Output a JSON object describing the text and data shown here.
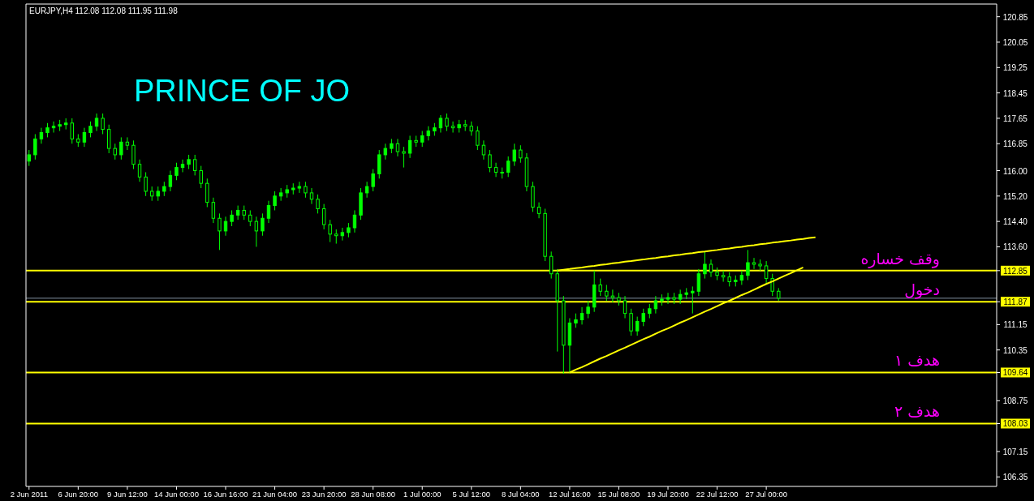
{
  "chart_data": {
    "type": "candlestick",
    "title": "EURJPY,H4  112.08 112.08 111.95 111.98",
    "color": "#00ff00",
    "annotations": [
      "PRINCE OF JO"
    ],
    "categories": [
      "2 Jun 2011",
      null,
      null,
      null,
      null,
      null,
      null,
      null,
      "6 Jun 20:00",
      null,
      null,
      null,
      null,
      null,
      null,
      null,
      "9 Jun 12:00",
      null,
      null,
      null,
      null,
      null,
      null,
      null,
      "14 Jun 00:00",
      null,
      null,
      null,
      null,
      null,
      null,
      null,
      "16 Jun 16:00",
      null,
      null,
      null,
      null,
      null,
      null,
      null,
      "21 Jun 04:00",
      null,
      null,
      null,
      null,
      null,
      null,
      null,
      "23 Jun 20:00",
      null,
      null,
      null,
      null,
      null,
      null,
      null,
      "28 Jun 08:00",
      null,
      null,
      null,
      null,
      null,
      null,
      null,
      "1 Jul 00:00",
      null,
      null,
      null,
      null,
      null,
      null,
      null,
      "5 Jul 12:00",
      null,
      null,
      null,
      null,
      null,
      null,
      null,
      "8 Jul 04:00",
      null,
      null,
      null,
      null,
      null,
      null,
      null,
      "12 Jul 16:00",
      null,
      null,
      null,
      null,
      null,
      null,
      null,
      "15 Jul 08:00",
      null,
      null,
      null,
      null,
      null,
      null,
      null,
      "19 Jul 20:00",
      null,
      null,
      null,
      null,
      null,
      null,
      null,
      "22 Jul 12:00",
      null,
      null,
      null,
      null,
      null,
      null,
      null,
      "27 Jul 00:00",
      null,
      null,
      null,
      null,
      null,
      null,
      null,
      null,
      null,
      null,
      null,
      null,
      null,
      null,
      null,
      null,
      null,
      null,
      null,
      null,
      null,
      null,
      null,
      null,
      null,
      null,
      null,
      null,
      null,
      null,
      null,
      null,
      null,
      null,
      null,
      null,
      null
    ],
    "ohlc": [
      [
        116.3,
        116.65,
        116.15,
        116.5
      ],
      [
        116.5,
        117.15,
        116.35,
        117.0
      ],
      [
        117.0,
        117.35,
        116.85,
        117.2
      ],
      [
        117.2,
        117.5,
        117.05,
        117.35
      ],
      [
        117.35,
        117.55,
        117.2,
        117.4
      ],
      [
        117.4,
        117.6,
        117.25,
        117.45
      ],
      [
        117.45,
        117.65,
        117.3,
        117.5
      ],
      [
        117.5,
        117.65,
        116.85,
        117.0
      ],
      [
        117.0,
        117.15,
        116.75,
        116.9
      ],
      [
        116.9,
        117.35,
        116.75,
        117.2
      ],
      [
        117.2,
        117.55,
        117.05,
        117.4
      ],
      [
        117.4,
        117.8,
        117.25,
        117.65
      ],
      [
        117.65,
        117.8,
        117.15,
        117.3
      ],
      [
        117.3,
        117.45,
        116.55,
        116.7
      ],
      [
        116.7,
        116.85,
        116.35,
        116.5
      ],
      [
        116.5,
        117.05,
        116.35,
        116.9
      ],
      [
        116.9,
        117.05,
        116.65,
        116.8
      ],
      [
        116.8,
        116.95,
        116.05,
        116.2
      ],
      [
        116.2,
        116.35,
        115.65,
        115.8
      ],
      [
        115.8,
        115.95,
        115.2,
        115.35
      ],
      [
        115.35,
        115.5,
        115.05,
        115.2
      ],
      [
        115.2,
        115.5,
        115.05,
        115.35
      ],
      [
        115.35,
        115.65,
        115.2,
        115.5
      ],
      [
        115.5,
        116.0,
        115.35,
        115.85
      ],
      [
        115.85,
        116.25,
        115.7,
        116.1
      ],
      [
        116.1,
        116.35,
        115.95,
        116.2
      ],
      [
        116.2,
        116.5,
        116.05,
        116.35
      ],
      [
        116.35,
        116.5,
        115.85,
        116.0
      ],
      [
        116.0,
        116.15,
        115.45,
        115.6
      ],
      [
        115.6,
        115.75,
        114.85,
        115.0
      ],
      [
        115.0,
        115.15,
        114.35,
        114.5
      ],
      [
        114.5,
        114.65,
        113.5,
        114.1
      ],
      [
        114.1,
        114.55,
        113.95,
        114.4
      ],
      [
        114.4,
        114.75,
        114.25,
        114.6
      ],
      [
        114.6,
        114.9,
        114.45,
        114.75
      ],
      [
        114.75,
        114.9,
        114.45,
        114.6
      ],
      [
        114.6,
        114.75,
        114.25,
        114.4
      ],
      [
        114.4,
        114.55,
        113.6,
        114.1
      ],
      [
        114.1,
        114.65,
        113.95,
        114.5
      ],
      [
        114.5,
        115.05,
        114.35,
        114.9
      ],
      [
        114.9,
        115.35,
        114.75,
        115.2
      ],
      [
        115.2,
        115.45,
        115.05,
        115.3
      ],
      [
        115.3,
        115.55,
        115.15,
        115.4
      ],
      [
        115.4,
        115.6,
        115.25,
        115.45
      ],
      [
        115.45,
        115.65,
        115.3,
        115.5
      ],
      [
        115.5,
        115.65,
        115.15,
        115.3
      ],
      [
        115.3,
        115.45,
        114.95,
        115.1
      ],
      [
        115.1,
        115.25,
        114.65,
        114.8
      ],
      [
        114.8,
        114.95,
        114.15,
        114.3
      ],
      [
        114.3,
        114.45,
        113.75,
        114.0
      ],
      [
        114.0,
        114.15,
        113.7,
        113.95
      ],
      [
        113.95,
        114.2,
        113.8,
        114.05
      ],
      [
        114.05,
        114.35,
        113.9,
        114.2
      ],
      [
        114.2,
        114.75,
        114.05,
        114.6
      ],
      [
        114.6,
        115.45,
        114.45,
        115.3
      ],
      [
        115.3,
        115.65,
        115.15,
        115.5
      ],
      [
        115.5,
        116.05,
        115.35,
        115.9
      ],
      [
        115.9,
        116.65,
        115.75,
        116.5
      ],
      [
        116.5,
        116.85,
        116.35,
        116.7
      ],
      [
        116.7,
        117.0,
        116.55,
        116.85
      ],
      [
        116.85,
        117.0,
        116.45,
        116.6
      ],
      [
        116.6,
        116.75,
        116.1,
        116.55
      ],
      [
        116.55,
        117.1,
        116.4,
        116.95
      ],
      [
        116.95,
        117.1,
        116.75,
        116.9
      ],
      [
        116.9,
        117.25,
        116.75,
        117.1
      ],
      [
        117.1,
        117.4,
        116.95,
        117.25
      ],
      [
        117.25,
        117.5,
        117.1,
        117.35
      ],
      [
        117.35,
        117.75,
        117.2,
        117.65
      ],
      [
        117.65,
        117.8,
        117.25,
        117.4
      ],
      [
        117.4,
        117.55,
        117.2,
        117.35
      ],
      [
        117.35,
        117.6,
        117.2,
        117.45
      ],
      [
        117.45,
        117.6,
        117.25,
        117.4
      ],
      [
        117.4,
        117.55,
        117.1,
        117.25
      ],
      [
        117.25,
        117.4,
        116.65,
        116.8
      ],
      [
        116.8,
        116.95,
        116.35,
        116.5
      ],
      [
        116.5,
        116.65,
        115.95,
        116.1
      ],
      [
        116.1,
        116.25,
        115.8,
        115.95
      ],
      [
        115.95,
        116.1,
        115.75,
        115.95
      ],
      [
        115.95,
        116.45,
        115.8,
        116.3
      ],
      [
        116.3,
        116.85,
        116.15,
        116.65
      ],
      [
        116.65,
        116.8,
        116.25,
        116.4
      ],
      [
        116.4,
        116.55,
        115.35,
        115.5
      ],
      [
        115.5,
        115.65,
        114.7,
        114.85
      ],
      [
        114.85,
        115.0,
        114.5,
        114.65
      ],
      [
        114.65,
        114.8,
        113.15,
        113.3
      ],
      [
        113.3,
        113.45,
        112.6,
        112.75
      ],
      [
        112.75,
        112.9,
        110.3,
        111.9
      ],
      [
        111.9,
        112.05,
        109.6,
        110.5
      ],
      [
        110.5,
        111.35,
        109.64,
        111.2
      ],
      [
        111.2,
        111.5,
        111.05,
        111.3
      ],
      [
        111.3,
        111.7,
        111.15,
        111.5
      ],
      [
        111.5,
        111.9,
        111.35,
        111.7
      ],
      [
        111.7,
        112.85,
        111.55,
        112.4
      ],
      [
        112.4,
        112.6,
        112.05,
        112.2
      ],
      [
        112.2,
        112.4,
        111.9,
        112.05
      ],
      [
        112.05,
        112.25,
        111.85,
        112.0
      ],
      [
        112.0,
        112.15,
        111.75,
        111.9
      ],
      [
        111.9,
        112.05,
        111.35,
        111.5
      ],
      [
        111.5,
        111.65,
        110.8,
        110.95
      ],
      [
        110.95,
        111.4,
        110.8,
        111.25
      ],
      [
        111.25,
        111.65,
        111.1,
        111.5
      ],
      [
        111.5,
        111.8,
        111.35,
        111.65
      ],
      [
        111.65,
        112.05,
        111.5,
        111.9
      ],
      [
        111.9,
        112.1,
        111.75,
        111.95
      ],
      [
        111.95,
        112.15,
        111.8,
        112.0
      ],
      [
        112.0,
        112.15,
        111.8,
        111.95
      ],
      [
        111.95,
        112.25,
        111.8,
        112.1
      ],
      [
        112.1,
        112.3,
        111.95,
        112.15
      ],
      [
        112.15,
        112.35,
        111.5,
        112.2
      ],
      [
        112.2,
        112.9,
        112.05,
        112.75
      ],
      [
        112.75,
        113.45,
        112.6,
        113.05
      ],
      [
        113.05,
        113.2,
        112.65,
        112.8
      ],
      [
        112.8,
        112.95,
        112.55,
        112.7
      ],
      [
        112.7,
        112.85,
        112.5,
        112.65
      ],
      [
        112.65,
        112.8,
        112.35,
        112.5
      ],
      [
        112.5,
        112.7,
        112.35,
        112.55
      ],
      [
        112.55,
        112.85,
        112.4,
        112.7
      ],
      [
        112.7,
        113.5,
        112.55,
        113.1
      ],
      [
        113.1,
        113.25,
        112.9,
        113.05
      ],
      [
        113.05,
        113.2,
        112.85,
        113.0
      ],
      [
        113.0,
        113.15,
        112.45,
        112.6
      ],
      [
        112.6,
        112.75,
        112.05,
        112.2
      ],
      [
        112.2,
        112.3,
        111.9,
        111.98
      ],
      null,
      null,
      null,
      null,
      null,
      null,
      null,
      null,
      null,
      null,
      null,
      null,
      null,
      null,
      null,
      null,
      null,
      null,
      null,
      null,
      null,
      null,
      null,
      null,
      null,
      null,
      null,
      null,
      null,
      null,
      null,
      null,
      null,
      null,
      null
    ],
    "series": [
      {
        "type": "line",
        "color": "#ffff00",
        "values": [
          null,
          null,
          null,
          null,
          null,
          null,
          null,
          null,
          null,
          null,
          null,
          null,
          null,
          null,
          null,
          null,
          null,
          null,
          null,
          null,
          null,
          null,
          null,
          null,
          null,
          null,
          null,
          null,
          null,
          null,
          null,
          null,
          null,
          null,
          null,
          null,
          null,
          null,
          null,
          null,
          null,
          null,
          null,
          null,
          null,
          null,
          null,
          null,
          null,
          null,
          null,
          null,
          null,
          null,
          null,
          null,
          null,
          null,
          null,
          null,
          null,
          null,
          null,
          null,
          null,
          null,
          null,
          null,
          null,
          null,
          null,
          null,
          null,
          null,
          null,
          null,
          null,
          null,
          null,
          null,
          null,
          null,
          null,
          null,
          null,
          null,
          112.85,
          112.88,
          112.9,
          112.93,
          112.95,
          112.98,
          113.0,
          113.03,
          113.05,
          113.08,
          113.1,
          113.13,
          113.15,
          113.18,
          113.2,
          113.23,
          113.25,
          113.28,
          113.3,
          113.33,
          113.35,
          113.38,
          113.4,
          113.43,
          113.45,
          113.48,
          113.5,
          113.53,
          113.55,
          113.58,
          113.6,
          113.63,
          113.65,
          113.68,
          113.7,
          113.73,
          113.75,
          113.78,
          113.8,
          113.83,
          113.85,
          113.88,
          113.9,
          null,
          null,
          null,
          null,
          null,
          null,
          null,
          null,
          null,
          null,
          null,
          null,
          null,
          null,
          null,
          null,
          null,
          null,
          null,
          null,
          null,
          null,
          null,
          null,
          null,
          null,
          null,
          null,
          null
        ]
      },
      {
        "type": "line",
        "color": "#ffff00",
        "values": [
          null,
          null,
          null,
          null,
          null,
          null,
          null,
          null,
          null,
          null,
          null,
          null,
          null,
          null,
          null,
          null,
          null,
          null,
          null,
          null,
          null,
          null,
          null,
          null,
          null,
          null,
          null,
          null,
          null,
          null,
          null,
          null,
          null,
          null,
          null,
          null,
          null,
          null,
          null,
          null,
          null,
          null,
          null,
          null,
          null,
          null,
          null,
          null,
          null,
          null,
          null,
          null,
          null,
          null,
          null,
          null,
          null,
          null,
          null,
          null,
          null,
          null,
          null,
          null,
          null,
          null,
          null,
          null,
          null,
          null,
          null,
          null,
          null,
          null,
          null,
          null,
          null,
          null,
          null,
          null,
          null,
          null,
          null,
          null,
          null,
          null,
          null,
          null,
          109.64,
          109.73,
          109.81,
          109.9,
          109.99,
          110.08,
          110.16,
          110.25,
          110.34,
          110.42,
          110.51,
          110.6,
          110.69,
          110.77,
          110.86,
          110.95,
          111.03,
          111.12,
          111.21,
          111.29,
          111.38,
          111.47,
          111.56,
          111.64,
          111.73,
          111.82,
          111.9,
          111.99,
          112.08,
          112.16,
          112.25,
          112.34,
          112.43,
          112.51,
          112.6,
          112.69,
          112.77,
          112.86,
          112.95,
          null,
          null,
          null,
          null,
          null,
          null,
          null,
          null,
          null,
          null,
          null,
          null,
          null,
          null,
          null,
          null,
          null,
          null,
          null,
          null,
          null,
          null,
          null,
          null,
          null,
          null,
          null,
          null,
          null,
          null,
          null
        ]
      }
    ],
    "ylim": [
      106.05,
      121.25
    ],
    "yticks": [
      120.85,
      120.05,
      119.25,
      118.45,
      117.65,
      116.85,
      {
        "value": 116.0,
        "label": "116.00"
      },
      {
        "value": 115.2,
        "label": "115.20"
      },
      {
        "value": 114.4,
        "label": "114.40"
      },
      {
        "value": 113.6,
        "label": "113.60"
      },
      112.85,
      111.87,
      111.15,
      110.35,
      109.64,
      108.75,
      108.03,
      107.15,
      106.35
    ],
    "ref_lines": [
      {
        "axis": "y",
        "value": 112.85,
        "label": "وقف خساره",
        "color": "#ffff00"
      },
      {
        "axis": "y",
        "value": 111.98,
        "color": "#8090a0"
      },
      {
        "axis": "y",
        "value": 111.87,
        "label": "دخول",
        "color": "#ffff00"
      },
      {
        "axis": "y",
        "value": 109.64,
        "label": "هدف ١",
        "color": "#ffff00"
      },
      {
        "axis": "y",
        "value": 108.03,
        "label": "هدف ٢",
        "color": "#ffff00"
      }
    ]
  }
}
